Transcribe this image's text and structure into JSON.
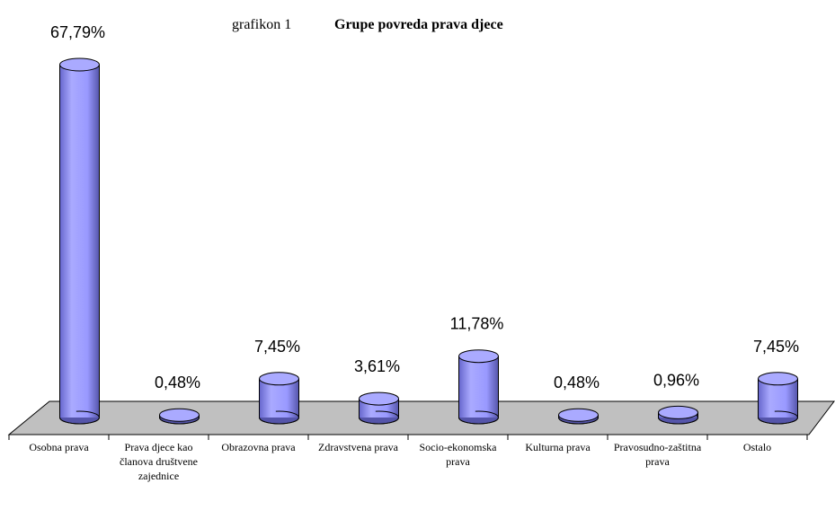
{
  "chart_data": {
    "type": "bar3d",
    "label": "grafikon 1",
    "title": "Grupe povreda prava djece",
    "categories": [
      "Osobna prava",
      "Prava djece kao članova društvene zajednice",
      "Obrazovna prava",
      "Zdravstvena prava",
      "Socio-ekonomska prava",
      "Kulturna prava",
      "Pravosudno-zaštitna prava",
      "Ostalo"
    ],
    "values": [
      67.79,
      0.48,
      7.45,
      3.61,
      11.78,
      0.48,
      0.96,
      7.45
    ],
    "value_labels": [
      "67,79%",
      "0,48%",
      "7,45%",
      "3,61%",
      "11,78%",
      "0,48%",
      "0,96%",
      "7,45%"
    ],
    "color": "#9999ff"
  }
}
